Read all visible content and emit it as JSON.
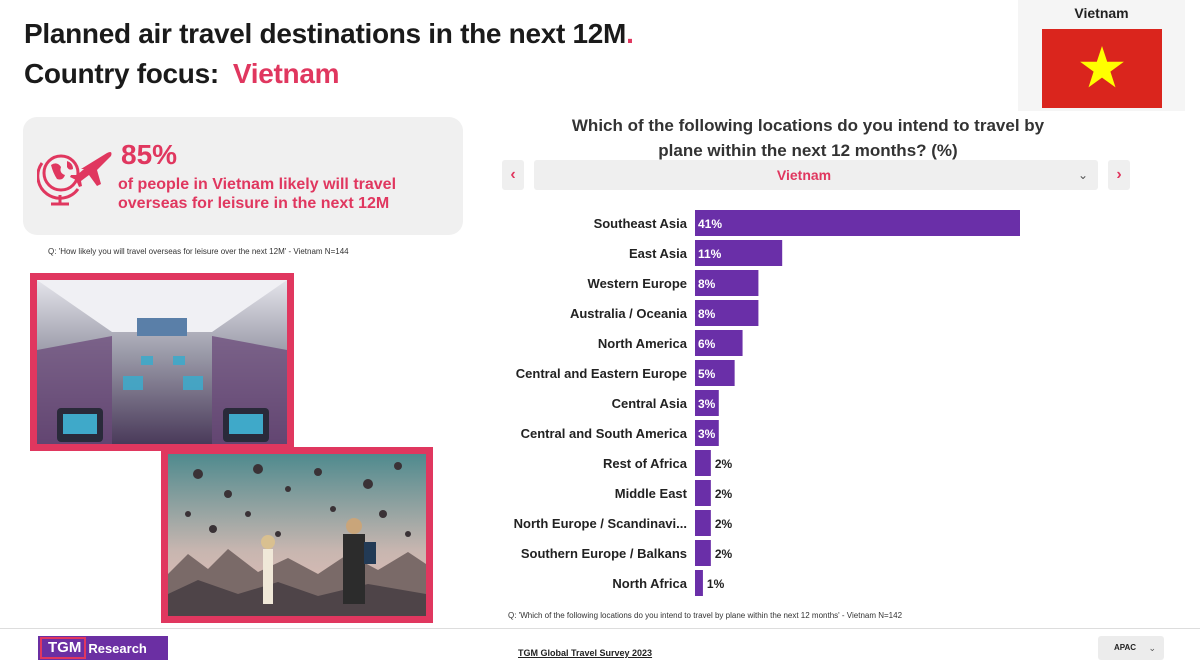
{
  "header": {
    "title_line1": "Planned air travel destinations in the next 12M",
    "title_dot": ".",
    "title_line2_prefix": "Country focus:",
    "country": "Vietnam"
  },
  "flag": {
    "label": "Vietnam",
    "colors": {
      "field": "#da251d",
      "star": "#ffff00"
    }
  },
  "stat_card": {
    "percent": "85%",
    "text": "of people in Vietnam likely will travel overseas for leisure in the next 12M",
    "note": "Q: 'How likely you will travel overseas for leisure over the next 12M' - Vietnam N=144",
    "icon": "globe-plane-icon"
  },
  "chart_header": {
    "question": "Which of the following locations do you intend to travel by plane within the next 12 months? (%)",
    "prev_icon": "‹",
    "next_icon": "›",
    "selected_country": "Vietnam",
    "caret": "⌄"
  },
  "chart_data": {
    "type": "bar",
    "orientation": "horizontal",
    "categories": [
      "Southeast Asia",
      "East Asia",
      "Western Europe",
      "Australia / Oceania",
      "North America",
      "Central and Eastern Europe",
      "Central Asia",
      "Central and South America",
      "Rest of Africa",
      "Middle East",
      "North Europe / Scandinavi...",
      "Southern Europe / Balkans",
      "North Africa"
    ],
    "values": [
      41,
      11,
      8,
      8,
      6,
      5,
      3,
      3,
      2,
      2,
      2,
      2,
      1
    ],
    "labels": [
      "41%",
      "11%",
      "8%",
      "8%",
      "6%",
      "5%",
      "3%",
      "3%",
      "2%",
      "2%",
      "2%",
      "2%",
      "1%"
    ],
    "bar_color": "#6a2fa8",
    "xlim": [
      0,
      41
    ],
    "grid": false
  },
  "chart_note": "Q: 'Which of the following locations do you intend to travel by plane within the next 12 months' - Vietnam N=142",
  "footer": {
    "logo_tgm": "TGM",
    "logo_research": "Research",
    "survey_link": "TGM Global Travel Survey 2023",
    "region": "APAC",
    "region_caret": "⌄"
  },
  "colors": {
    "accent": "#e0375f",
    "bar": "#6a2fa8",
    "logo_bg": "#6b2fa3"
  }
}
